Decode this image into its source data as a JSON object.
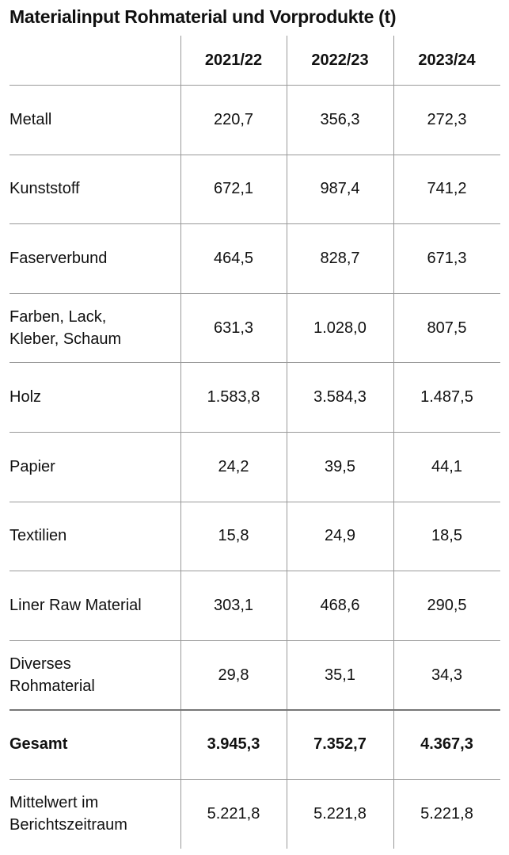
{
  "title": "Materialinput Rohmaterial und Vorprodukte (t)",
  "table": {
    "header": [
      "2021/22",
      "2022/23",
      "2023/24"
    ],
    "rows": [
      {
        "label": [
          "Metall"
        ],
        "values": [
          "220,7",
          "356,3",
          "272,3"
        ]
      },
      {
        "label": [
          "Kunststoff"
        ],
        "values": [
          "672,1",
          "987,4",
          "741,2"
        ]
      },
      {
        "label": [
          "Faserverbund"
        ],
        "values": [
          "464,5",
          "828,7",
          "671,3"
        ]
      },
      {
        "label": [
          "Farben, Lack,",
          "Kleber, Schaum"
        ],
        "values": [
          "631,3",
          "1.028,0",
          "807,5"
        ]
      },
      {
        "label": [
          "Holz"
        ],
        "values": [
          "1.583,8",
          "3.584,3",
          "1.487,5"
        ]
      },
      {
        "label": [
          "Papier"
        ],
        "values": [
          "24,2",
          "39,5",
          "44,1"
        ]
      },
      {
        "label": [
          "Textilien"
        ],
        "values": [
          "15,8",
          "24,9",
          "18,5"
        ]
      },
      {
        "label": [
          "Liner Raw Material"
        ],
        "values": [
          "303,1",
          "468,6",
          "290,5"
        ]
      },
      {
        "label": [
          "Diverses",
          "Rohmaterial"
        ],
        "values": [
          "29,8",
          "35,1",
          "34,3"
        ]
      },
      {
        "label": [
          "Gesamt"
        ],
        "values": [
          "3.945,3",
          "7.352,7",
          "4.367,3"
        ]
      },
      {
        "label": [
          "Mittelwert im",
          "Berichtszeitraum"
        ],
        "values": [
          "5.221,8",
          "5.221,8",
          "5.221,8"
        ]
      }
    ]
  }
}
